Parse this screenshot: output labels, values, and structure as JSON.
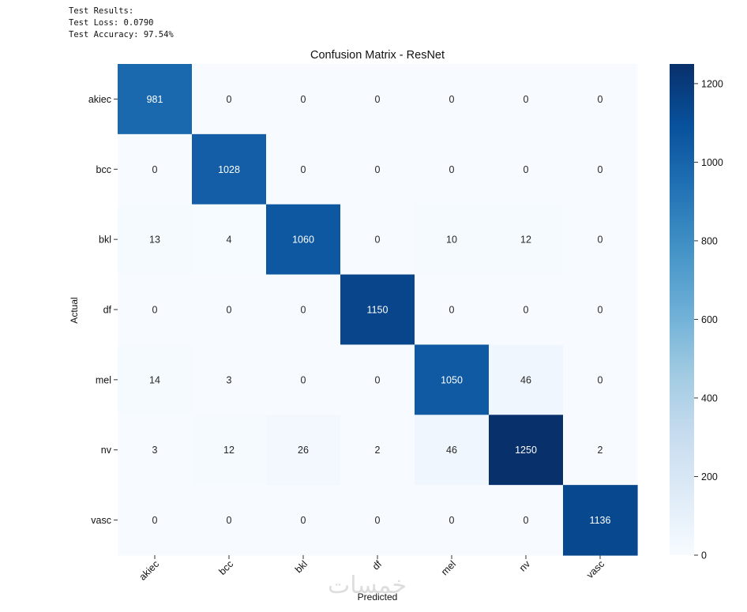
{
  "results": {
    "heading": "Test Results:",
    "loss": "Test Loss: 0.0790",
    "accuracy": "Test Accuracy: 97.54%"
  },
  "watermark": "خمسات",
  "chart_data": {
    "type": "heatmap",
    "title": "Confusion Matrix - ResNet",
    "xlabel": "Predicted",
    "ylabel": "Actual",
    "x_categories": [
      "akiec",
      "bcc",
      "bkl",
      "df",
      "mel",
      "nv",
      "vasc"
    ],
    "y_categories": [
      "akiec",
      "bcc",
      "bkl",
      "df",
      "mel",
      "nv",
      "vasc"
    ],
    "values": [
      [
        981,
        0,
        0,
        0,
        0,
        0,
        0
      ],
      [
        0,
        1028,
        0,
        0,
        0,
        0,
        0
      ],
      [
        13,
        4,
        1060,
        0,
        10,
        12,
        0
      ],
      [
        0,
        0,
        0,
        1150,
        0,
        0,
        0
      ],
      [
        14,
        3,
        0,
        0,
        1050,
        46,
        0
      ],
      [
        3,
        12,
        26,
        2,
        46,
        1250,
        2
      ],
      [
        0,
        0,
        0,
        0,
        0,
        0,
        1136
      ]
    ],
    "colorbar": {
      "min": 0,
      "max": 1250,
      "ticks": [
        0,
        200,
        400,
        600,
        800,
        1000,
        1200
      ],
      "colormap": "Blues",
      "low_color": "#f7fbff",
      "high_color": "#08306b"
    },
    "annotations": true,
    "grid": false
  }
}
